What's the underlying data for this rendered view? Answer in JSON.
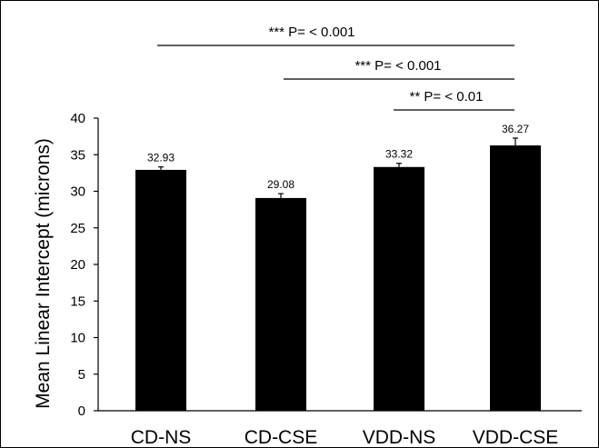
{
  "chart_data": {
    "type": "bar",
    "title": "",
    "xlabel": "",
    "ylabel": "Mean Linear Intercept (microns)",
    "ylim": [
      0,
      40
    ],
    "yticks": [
      0,
      5,
      10,
      15,
      20,
      25,
      30,
      35,
      40
    ],
    "grid": false,
    "categories": [
      "CD-NS",
      "CD-CSE",
      "VDD-NS",
      "VDD-CSE"
    ],
    "values": [
      32.93,
      29.08,
      33.32,
      36.27
    ],
    "errors": [
      0.4,
      0.6,
      0.5,
      1.0
    ],
    "value_labels": [
      "32.93",
      "29.08",
      "33.32",
      "36.27"
    ],
    "bar_color": "#000000",
    "significance": [
      {
        "from": 0,
        "to": 3,
        "label": "*** P= < 0.001"
      },
      {
        "from": 1,
        "to": 3,
        "label": "*** P= < 0.001"
      },
      {
        "from": 2,
        "to": 3,
        "label": "** P= < 0.01"
      }
    ]
  }
}
